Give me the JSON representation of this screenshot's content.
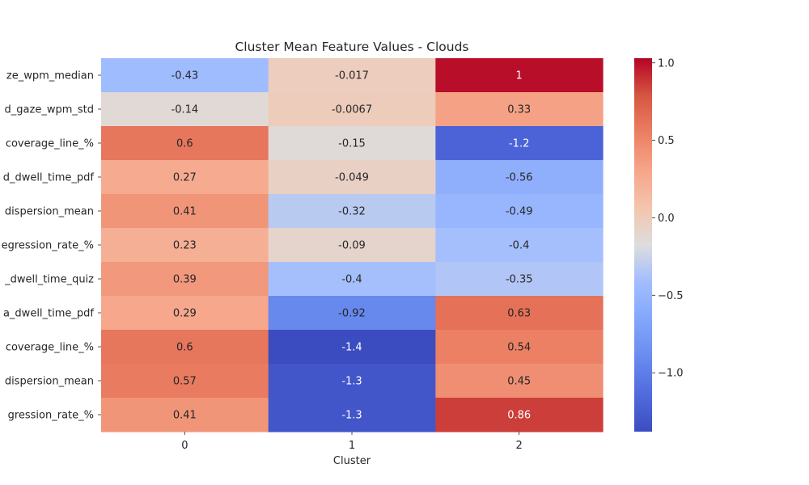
{
  "chart_data": {
    "type": "heatmap",
    "title": "Cluster Mean Feature Values - Clouds",
    "xlabel": "Cluster",
    "ylabel": "",
    "x_categories": [
      "0",
      "1",
      "2"
    ],
    "y_categories": [
      "ze_wpm_median",
      "d_gaze_wpm_std",
      "coverage_line_%",
      "d_dwell_time_pdf",
      "dispersion_mean",
      "egression_rate_%",
      "_dwell_time_quiz",
      "a_dwell_time_pdf",
      "coverage_line_%",
      "dispersion_mean",
      "gression_rate_%"
    ],
    "values": [
      [
        -0.43,
        -0.017,
        1
      ],
      [
        -0.14,
        -0.0067,
        0.33
      ],
      [
        0.6,
        -0.15,
        -1.2
      ],
      [
        0.27,
        -0.049,
        -0.56
      ],
      [
        0.41,
        -0.32,
        -0.49
      ],
      [
        0.23,
        -0.09,
        -0.4
      ],
      [
        0.39,
        -0.4,
        -0.35
      ],
      [
        0.29,
        -0.92,
        0.63
      ],
      [
        0.6,
        -1.4,
        0.54
      ],
      [
        0.57,
        -1.3,
        0.45
      ],
      [
        0.41,
        -1.3,
        0.86
      ]
    ],
    "colormap": "coolwarm",
    "vmin": -1.38,
    "vmax": 1.03,
    "colorbar_ticks": [
      1.0,
      0.5,
      0.0,
      -0.5,
      -1.0
    ],
    "colorbar_tick_labels": [
      "1.0",
      "0.5",
      "0.0",
      "−0.5",
      "−1.0"
    ]
  }
}
